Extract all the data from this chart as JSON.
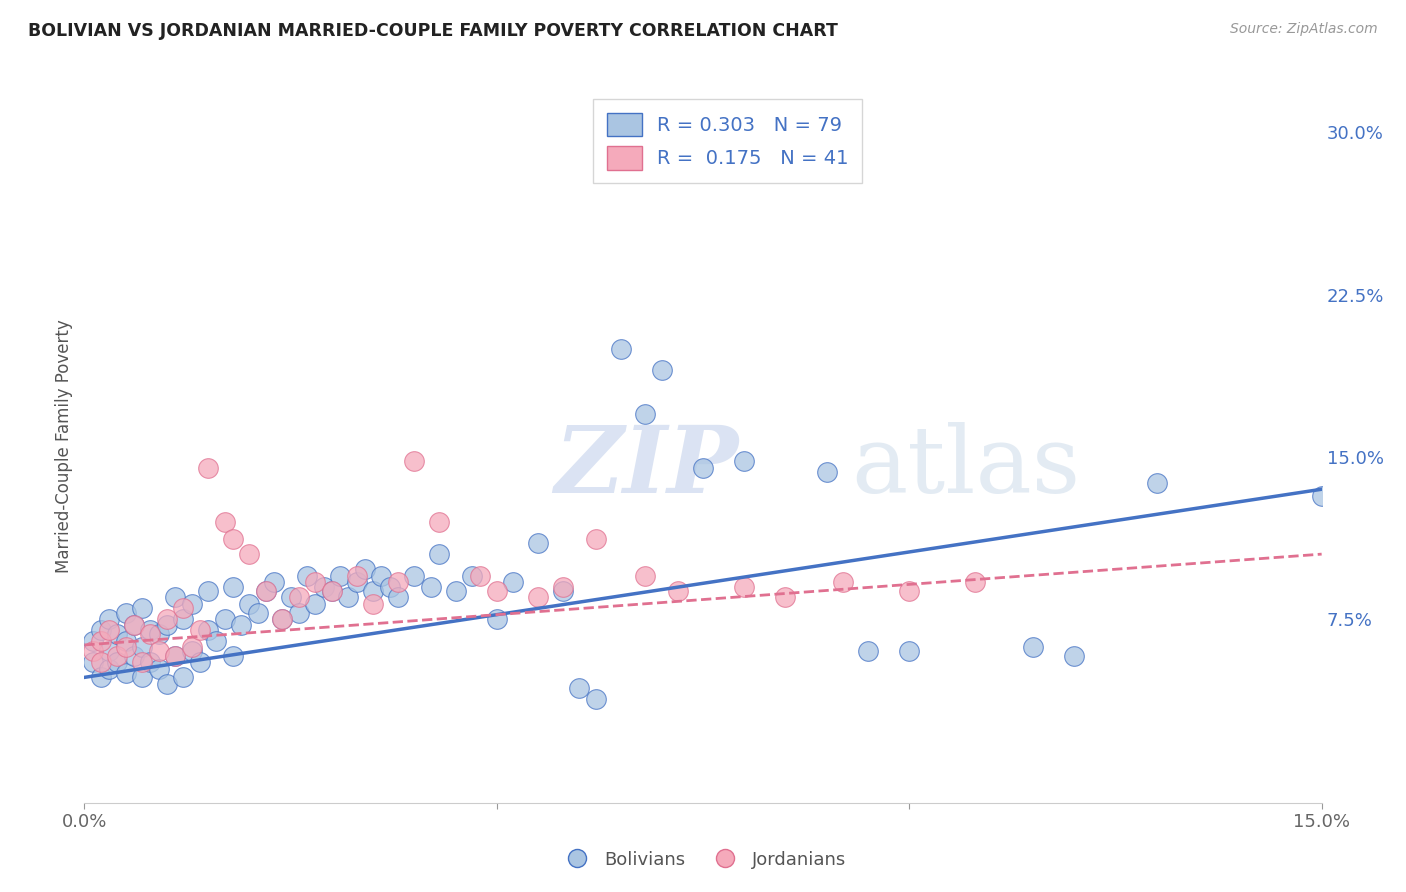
{
  "title": "BOLIVIAN VS JORDANIAN MARRIED-COUPLE FAMILY POVERTY CORRELATION CHART",
  "source": "Source: ZipAtlas.com",
  "ylabel": "Married-Couple Family Poverty",
  "xlim": [
    0.0,
    0.15
  ],
  "ylim": [
    -0.01,
    0.32
  ],
  "xticks": [
    0.0,
    0.05,
    0.1,
    0.15
  ],
  "xtick_labels": [
    "0.0%",
    "",
    "",
    "15.0%"
  ],
  "ytick_labels_right": [
    "",
    "7.5%",
    "15.0%",
    "22.5%",
    "30.0%"
  ],
  "yticks_right": [
    0.0,
    0.075,
    0.15,
    0.225,
    0.3
  ],
  "bolivian_color": "#aac5e2",
  "jordanian_color": "#f5aabb",
  "bolivian_line_color": "#4472c4",
  "jordanian_line_color": "#e07090",
  "R_bolivian": 0.303,
  "N_bolivian": 79,
  "R_jordanian": 0.175,
  "N_jordanian": 41,
  "watermark_zip": "ZIP",
  "watermark_atlas": "atlas",
  "background_color": "#ffffff",
  "grid_color": "#dddddd",
  "title_color": "#222222",
  "bol_line_x0": 0.0,
  "bol_line_y0": 0.048,
  "bol_line_x1": 0.15,
  "bol_line_y1": 0.135,
  "jor_line_x0": 0.0,
  "jor_line_y0": 0.063,
  "jor_line_x1": 0.15,
  "jor_line_y1": 0.105,
  "bolivians_scatter_x": [
    0.001,
    0.001,
    0.002,
    0.002,
    0.003,
    0.003,
    0.003,
    0.004,
    0.004,
    0.005,
    0.005,
    0.005,
    0.006,
    0.006,
    0.007,
    0.007,
    0.007,
    0.008,
    0.008,
    0.009,
    0.009,
    0.01,
    0.01,
    0.011,
    0.011,
    0.012,
    0.012,
    0.013,
    0.013,
    0.014,
    0.015,
    0.015,
    0.016,
    0.017,
    0.018,
    0.018,
    0.019,
    0.02,
    0.021,
    0.022,
    0.023,
    0.024,
    0.025,
    0.026,
    0.027,
    0.028,
    0.029,
    0.03,
    0.031,
    0.032,
    0.033,
    0.034,
    0.035,
    0.036,
    0.037,
    0.038,
    0.04,
    0.042,
    0.043,
    0.045,
    0.047,
    0.05,
    0.052,
    0.055,
    0.058,
    0.06,
    0.062,
    0.065,
    0.068,
    0.07,
    0.075,
    0.08,
    0.09,
    0.095,
    0.1,
    0.115,
    0.12,
    0.13,
    0.15
  ],
  "bolivians_scatter_y": [
    0.055,
    0.065,
    0.048,
    0.07,
    0.052,
    0.06,
    0.075,
    0.055,
    0.068,
    0.05,
    0.065,
    0.078,
    0.058,
    0.072,
    0.048,
    0.062,
    0.08,
    0.055,
    0.07,
    0.052,
    0.068,
    0.045,
    0.072,
    0.058,
    0.085,
    0.048,
    0.075,
    0.06,
    0.082,
    0.055,
    0.07,
    0.088,
    0.065,
    0.075,
    0.058,
    0.09,
    0.072,
    0.082,
    0.078,
    0.088,
    0.092,
    0.075,
    0.085,
    0.078,
    0.095,
    0.082,
    0.09,
    0.088,
    0.095,
    0.085,
    0.092,
    0.098,
    0.088,
    0.095,
    0.09,
    0.085,
    0.095,
    0.09,
    0.105,
    0.088,
    0.095,
    0.075,
    0.092,
    0.11,
    0.088,
    0.043,
    0.038,
    0.2,
    0.17,
    0.19,
    0.145,
    0.148,
    0.143,
    0.06,
    0.06,
    0.062,
    0.058,
    0.138,
    0.132
  ],
  "jordanians_scatter_x": [
    0.001,
    0.002,
    0.002,
    0.003,
    0.004,
    0.005,
    0.006,
    0.007,
    0.008,
    0.009,
    0.01,
    0.011,
    0.012,
    0.013,
    0.014,
    0.015,
    0.017,
    0.018,
    0.02,
    0.022,
    0.024,
    0.026,
    0.028,
    0.03,
    0.033,
    0.035,
    0.038,
    0.04,
    0.043,
    0.048,
    0.05,
    0.055,
    0.058,
    0.062,
    0.068,
    0.072,
    0.08,
    0.085,
    0.092,
    0.1,
    0.108
  ],
  "jordanians_scatter_y": [
    0.06,
    0.065,
    0.055,
    0.07,
    0.058,
    0.062,
    0.072,
    0.055,
    0.068,
    0.06,
    0.075,
    0.058,
    0.08,
    0.062,
    0.07,
    0.145,
    0.12,
    0.112,
    0.105,
    0.088,
    0.075,
    0.085,
    0.092,
    0.088,
    0.095,
    0.082,
    0.092,
    0.148,
    0.12,
    0.095,
    0.088,
    0.085,
    0.09,
    0.112,
    0.095,
    0.088,
    0.09,
    0.085,
    0.092,
    0.088,
    0.092
  ]
}
